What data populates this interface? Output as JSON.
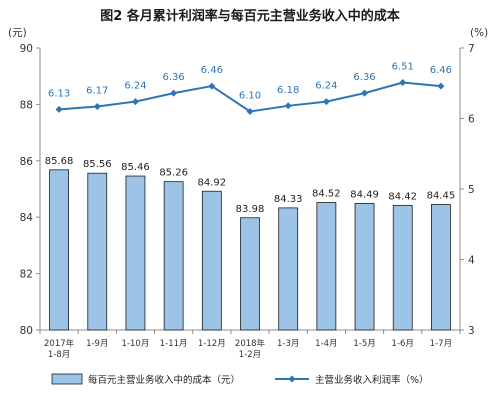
{
  "chart_data": {
    "type": "bar+line",
    "title": "图2  各月累计利润率与每百元主营业务收入中的成本",
    "categories": [
      [
        "2017年",
        "1-8月"
      ],
      [
        "1-9月"
      ],
      [
        "1-10月"
      ],
      [
        "1-11月"
      ],
      [
        "1-12月"
      ],
      [
        "2018年",
        "1-2月"
      ],
      [
        "1-3月"
      ],
      [
        "1-4月"
      ],
      [
        "1-5月"
      ],
      [
        "1-6月"
      ],
      [
        "1-7月"
      ]
    ],
    "left_axis": {
      "unit": "(元)",
      "ylim": [
        80,
        90
      ],
      "ticks": [
        "80",
        "82",
        "84",
        "86",
        "88",
        "90"
      ]
    },
    "right_axis": {
      "unit": "(%)",
      "ylim": [
        3,
        7
      ],
      "ticks": [
        "3",
        "4",
        "5",
        "6",
        "7"
      ]
    },
    "series": [
      {
        "name": "每百元主营业务收入中的成本（元）",
        "type": "bar",
        "axis": "left",
        "values": [
          85.68,
          85.56,
          85.46,
          85.26,
          84.92,
          83.98,
          84.33,
          84.52,
          84.49,
          84.42,
          84.45
        ],
        "labels": [
          "85.68",
          "85.56",
          "85.46",
          "85.26",
          "84.92",
          "83.98",
          "84.33",
          "84.52",
          "84.49",
          "84.42",
          "84.45"
        ]
      },
      {
        "name": "主营业务收入利润率（%）",
        "type": "line",
        "axis": "right",
        "values": [
          6.13,
          6.17,
          6.24,
          6.36,
          6.46,
          6.1,
          6.18,
          6.24,
          6.36,
          6.51,
          6.46
        ],
        "labels": [
          "6.13",
          "6.17",
          "6.24",
          "6.36",
          "6.46",
          "6.10",
          "6.18",
          "6.24",
          "6.36",
          "6.51",
          "6.46"
        ]
      }
    ],
    "legend_position": "bottom",
    "grid": false,
    "colors": {
      "bar_fill": "#9dc3e6",
      "bar_stroke": "#1f1f1f",
      "line": "#2e75b6",
      "axis": "#8c8c8c"
    }
  }
}
